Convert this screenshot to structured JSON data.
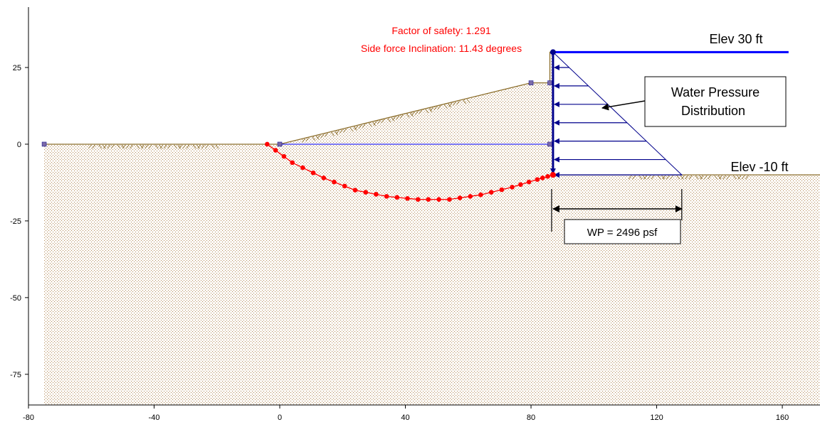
{
  "chart_data": {
    "type": "slope-stability-section",
    "x_ticks": [
      "-80",
      "-40",
      "0",
      "40",
      "80",
      "120",
      "160"
    ],
    "y_ticks": [
      "25",
      "0",
      "-25",
      "-50",
      "-75"
    ],
    "xlim": [
      -80,
      172
    ],
    "ylim": [
      -85,
      47
    ],
    "factor_of_safety_label": "Factor of safety: 1.291",
    "side_force_label": "Side force Inclination: 11.43 degrees",
    "factor_of_safety": 1.291,
    "side_force_inclination_deg": 11.43,
    "elev_top_label": "Elev 30 ft",
    "elev_bottom_label": "Elev -10 ft",
    "water_pressure_label_line1": "Water Pressure",
    "water_pressure_label_line2": "Distribution",
    "wp_label": "WP = 2496 psf",
    "ground_surface": [
      [
        -75,
        0
      ],
      [
        0,
        0
      ],
      [
        80,
        20
      ],
      [
        86,
        20
      ],
      [
        86,
        30
      ],
      [
        87,
        30
      ],
      [
        87,
        -10
      ],
      [
        172,
        -10
      ]
    ],
    "water_table": [
      [
        0,
        0
      ],
      [
        86,
        0
      ]
    ],
    "water_level_right": {
      "elevation": 30,
      "x_start": 87,
      "x_end": 162
    },
    "water_pressure_triangle": [
      [
        87,
        30
      ],
      [
        128,
        -10
      ],
      [
        87,
        -10
      ]
    ],
    "water_pressure_arrow_elevations": [
      25,
      19,
      13,
      7,
      1,
      -5,
      -10
    ],
    "slip_surface": [
      [
        -4,
        0
      ],
      [
        4,
        -6
      ],
      [
        14,
        -11
      ],
      [
        24,
        -15
      ],
      [
        34,
        -17
      ],
      [
        44,
        -18
      ],
      [
        54,
        -18
      ],
      [
        64,
        -16.5
      ],
      [
        74,
        -14
      ],
      [
        82,
        -11.5
      ],
      [
        87,
        -10
      ]
    ],
    "vertices": [
      [
        -75,
        0
      ],
      [
        0,
        0
      ],
      [
        80,
        20
      ],
      [
        86,
        20
      ],
      [
        86,
        0
      ]
    ],
    "colors": {
      "ground": "#8b6d2a",
      "soil_dots": "#b38b5a",
      "water": "#0000ff",
      "pressure": "#00008b",
      "slip": "#ff0000",
      "vertex": "#7b6aa8"
    }
  }
}
